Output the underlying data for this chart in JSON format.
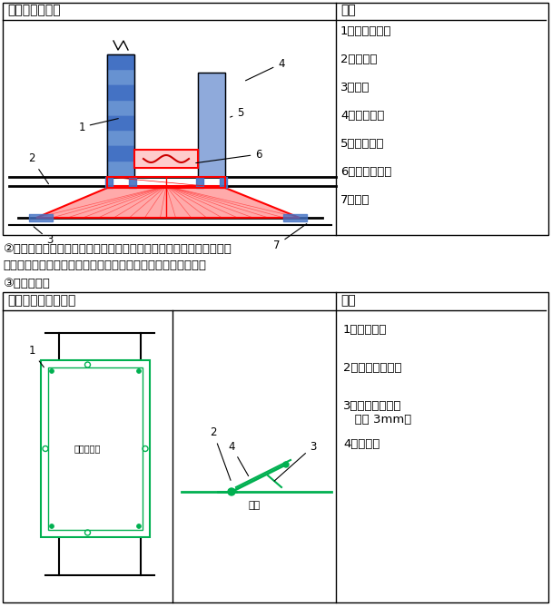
{
  "title1": "散流器安装详图",
  "title2": "说明",
  "desc1_items": [
    "1、风量调节阀",
    "2、风管带",
    "3、胶垫",
    "4、镀锌风管",
    "5、保温材料",
    "6、散流器颈口",
    "7、胶垫"
  ],
  "title3": "风管检修门安装详图",
  "title4": "说明",
  "desc2_items": [
    "1、方形风管",
    "2、风管保温材料",
    "3、保温材料（不\n少于 3mm）",
    "4、检修门"
  ],
  "text_para": "②外墙百叶式防水进排风风口安装为工程的必要环节，安装时需要注意风口的安装方向以及与风管连接处的密闭处理，避免雨水渗入。",
  "text_para2": "③检修门安装",
  "bg_color": "#ffffff",
  "border_color": "#000000",
  "red_color": "#ff0000",
  "blue_color": "#4472c4",
  "green_color": "#00b050",
  "dark_color": "#000000"
}
